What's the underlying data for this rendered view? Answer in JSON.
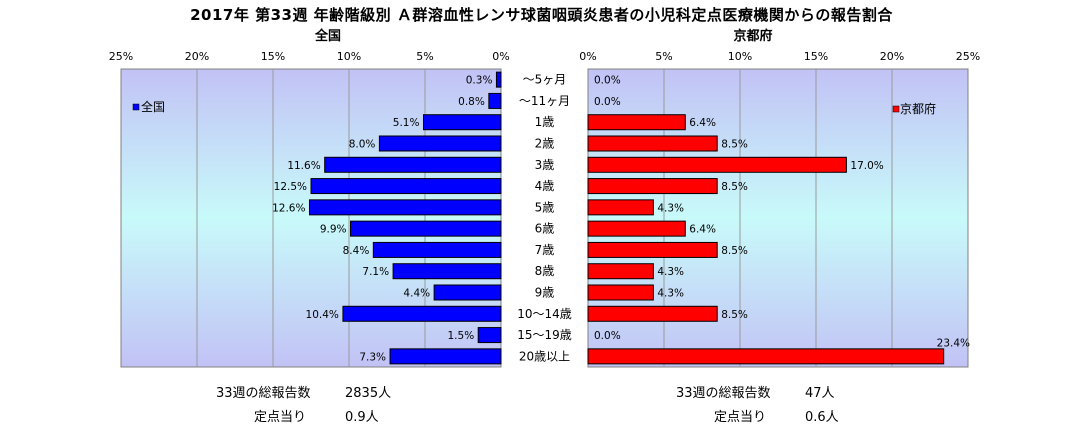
{
  "title": "2017年 第33週 年齢階級別 Ａ群溶血性レンサ球菌咽頭炎患者の小児科定点医療機関からの報告割合",
  "chart_data": [
    {
      "type": "bar",
      "orientation": "horizontal",
      "direction": "right-to-left",
      "title": "全国",
      "categories": [
        "～5ヶ月",
        "～11ヶ月",
        "1歳",
        "2歳",
        "3歳",
        "4歳",
        "5歳",
        "6歳",
        "7歳",
        "8歳",
        "9歳",
        "10～14歳",
        "15～19歳",
        "20歳以上"
      ],
      "series": [
        {
          "name": "全国",
          "values": [
            0.3,
            0.8,
            5.1,
            8.0,
            11.6,
            12.5,
            12.6,
            9.9,
            8.4,
            7.1,
            4.4,
            10.4,
            1.5,
            7.3
          ],
          "color": "#0000ff"
        }
      ],
      "value_labels": [
        "0.3%",
        "0.8%",
        "5.1%",
        "8.0%",
        "11.6%",
        "12.5%",
        "12.6%",
        "9.9%",
        "8.4%",
        "7.1%",
        "4.4%",
        "10.4%",
        "1.5%",
        "7.3%"
      ],
      "xlim": [
        0,
        25
      ],
      "xticks": [
        "25%",
        "20%",
        "15%",
        "10%",
        "5%",
        "0%"
      ],
      "legend": "top-left",
      "grid": true
    },
    {
      "type": "bar",
      "orientation": "horizontal",
      "direction": "left-to-right",
      "title": "京都府",
      "categories": [
        "～5ヶ月",
        "～11ヶ月",
        "1歳",
        "2歳",
        "3歳",
        "4歳",
        "5歳",
        "6歳",
        "7歳",
        "8歳",
        "9歳",
        "10～14歳",
        "15～19歳",
        "20歳以上"
      ],
      "series": [
        {
          "name": "京都府",
          "values": [
            0.0,
            0.0,
            6.4,
            8.5,
            17.0,
            8.5,
            4.3,
            6.4,
            8.5,
            4.3,
            4.3,
            8.5,
            0.0,
            23.4
          ],
          "color": "#ff0000"
        }
      ],
      "value_labels": [
        "0.0%",
        "0.0%",
        "6.4%",
        "8.5%",
        "17.0%",
        "8.5%",
        "4.3%",
        "6.4%",
        "8.5%",
        "4.3%",
        "4.3%",
        "8.5%",
        "0.0%",
        "23.4%"
      ],
      "xlim": [
        0,
        25
      ],
      "xticks": [
        "0%",
        "5%",
        "10%",
        "15%",
        "20%",
        "25%"
      ],
      "legend": "top-right",
      "grid": true
    }
  ],
  "footer": {
    "national_total_label": "33週の総報告数",
    "national_total_value": "2835人",
    "national_per_label": "定点当り",
    "national_per_value": "0.9人",
    "kyoto_total_label": "33週の総報告数",
    "kyoto_total_value": "47人",
    "kyoto_per_label": "定点当り",
    "kyoto_per_value": "0.6人"
  }
}
